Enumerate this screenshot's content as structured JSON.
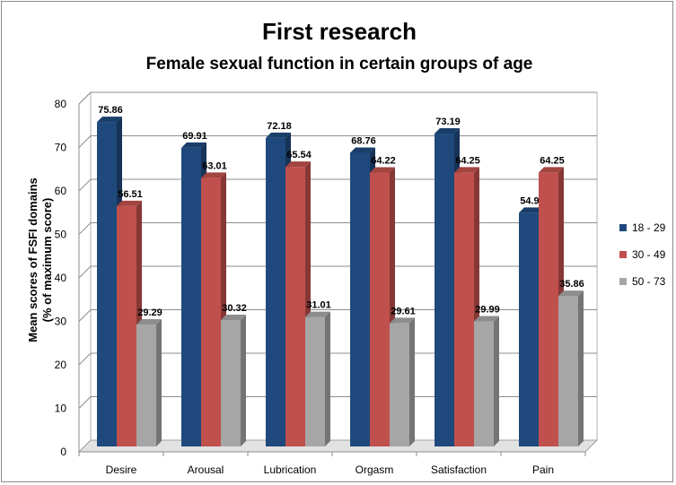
{
  "chart_data": {
    "type": "bar",
    "title": "First research",
    "subtitle": "Female sexual function in certain groups of age",
    "ylabel_line1": "Mean scores of FSFI domains",
    "ylabel_line2": "(% of maximum score)",
    "xlabel": "",
    "ylim": [
      0,
      80
    ],
    "yticks": [
      "0",
      "10",
      "20",
      "30",
      "40",
      "50",
      "60",
      "70",
      "80"
    ],
    "categories": [
      "Desire",
      "Arousal",
      "Lubrication",
      "Orgasm",
      "Satisfaction",
      "Pain"
    ],
    "series": [
      {
        "name": "18 - 29",
        "color": "#1f497d",
        "labels": [
          "75.86",
          "69.91",
          "72.18",
          "68.76",
          "73.19",
          "54.97"
        ],
        "values": [
          75.86,
          69.91,
          72.18,
          68.76,
          73.19,
          54.97
        ]
      },
      {
        "name": "30 - 49",
        "color": "#c0504d",
        "labels": [
          "56.51",
          "63.01",
          "65.54",
          "64.22",
          "64.25",
          "64.25"
        ],
        "values": [
          56.51,
          63.01,
          65.54,
          64.22,
          64.25,
          64.25
        ]
      },
      {
        "name": "50 - 73",
        "color": "#a6a6a6",
        "labels": [
          "29.29",
          "30.32",
          "31.01",
          "29.61",
          "29.99",
          "35.86"
        ],
        "values": [
          29.29,
          30.32,
          31.01,
          29.61,
          29.99,
          35.86
        ]
      }
    ],
    "legend_position": "right",
    "grid": true,
    "style": "3d-clustered-column"
  }
}
